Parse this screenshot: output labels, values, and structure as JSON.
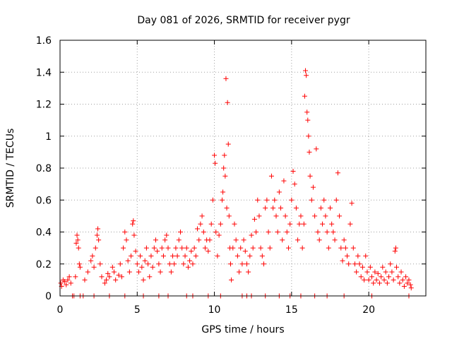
{
  "chart_data": {
    "type": "scatter",
    "title": "Day 081 of 2026, SRMTID for receiver pygr",
    "xlabel": "GPS time / hours",
    "ylabel": "SRMTID / TECUs",
    "xlim": [
      0,
      23.7
    ],
    "ylim": [
      0,
      1.6
    ],
    "x_ticks": [
      0,
      5,
      10,
      15,
      20
    ],
    "x_tick_labels": [
      "0",
      "5",
      "10",
      "15",
      "20"
    ],
    "y_ticks": [
      0,
      0.2,
      0.4,
      0.6,
      0.8,
      1.0,
      1.2,
      1.4,
      1.6
    ],
    "y_tick_labels": [
      "0",
      "0.2",
      "0.4",
      "0.6",
      "0.8",
      "1",
      "1.2",
      "1.4",
      "1.6"
    ],
    "grid": true,
    "marker": "+",
    "series": [
      {
        "name": "SRMTID",
        "color": "#ff0000",
        "points": [
          [
            0.05,
            0.08
          ],
          [
            0.1,
            0.06
          ],
          [
            0.2,
            0.1
          ],
          [
            0.3,
            0.09
          ],
          [
            0.4,
            0.07
          ],
          [
            0.5,
            0.1
          ],
          [
            0.6,
            0.12
          ],
          [
            0.7,
            0.08
          ],
          [
            0.9,
            0.0
          ],
          [
            1.0,
            0.12
          ],
          [
            1.05,
            0.33
          ],
          [
            1.1,
            0.38
          ],
          [
            1.15,
            0.35
          ],
          [
            1.2,
            0.3
          ],
          [
            1.25,
            0.2
          ],
          [
            1.3,
            0.18
          ],
          [
            1.5,
            0.0
          ],
          [
            1.6,
            0.1
          ],
          [
            1.8,
            0.15
          ],
          [
            2.0,
            0.22
          ],
          [
            2.1,
            0.25
          ],
          [
            2.2,
            0.18
          ],
          [
            2.3,
            0.3
          ],
          [
            2.4,
            0.38
          ],
          [
            2.45,
            0.42
          ],
          [
            2.5,
            0.35
          ],
          [
            2.6,
            0.2
          ],
          [
            2.7,
            0.12
          ],
          [
            2.9,
            0.08
          ],
          [
            3.0,
            0.1
          ],
          [
            3.1,
            0.14
          ],
          [
            3.2,
            0.12
          ],
          [
            3.4,
            0.18
          ],
          [
            3.5,
            0.15
          ],
          [
            3.6,
            0.1
          ],
          [
            3.8,
            0.13
          ],
          [
            3.9,
            0.2
          ],
          [
            4.0,
            0.12
          ],
          [
            4.1,
            0.3
          ],
          [
            4.2,
            0.4
          ],
          [
            4.3,
            0.35
          ],
          [
            4.4,
            0.22
          ],
          [
            4.5,
            0.15
          ],
          [
            4.6,
            0.25
          ],
          [
            4.7,
            0.45
          ],
          [
            4.75,
            0.47
          ],
          [
            4.8,
            0.38
          ],
          [
            4.9,
            0.28
          ],
          [
            5.0,
            0.2
          ],
          [
            5.1,
            0.15
          ],
          [
            5.2,
            0.25
          ],
          [
            5.3,
            0.18
          ],
          [
            5.4,
            0.1
          ],
          [
            5.5,
            0.22
          ],
          [
            5.6,
            0.3
          ],
          [
            5.7,
            0.2
          ],
          [
            5.8,
            0.12
          ],
          [
            5.9,
            0.25
          ],
          [
            6.0,
            0.18
          ],
          [
            6.1,
            0.3
          ],
          [
            6.2,
            0.35
          ],
          [
            6.3,
            0.28
          ],
          [
            6.4,
            0.2
          ],
          [
            6.5,
            0.15
          ],
          [
            6.6,
            0.3
          ],
          [
            6.7,
            0.25
          ],
          [
            6.8,
            0.35
          ],
          [
            6.9,
            0.38
          ],
          [
            7.0,
            0.3
          ],
          [
            7.1,
            0.2
          ],
          [
            7.2,
            0.15
          ],
          [
            7.3,
            0.25
          ],
          [
            7.4,
            0.2
          ],
          [
            7.5,
            0.3
          ],
          [
            7.6,
            0.25
          ],
          [
            7.7,
            0.35
          ],
          [
            7.8,
            0.4
          ],
          [
            7.9,
            0.3
          ],
          [
            8.0,
            0.2
          ],
          [
            8.1,
            0.25
          ],
          [
            8.2,
            0.3
          ],
          [
            8.3,
            0.18
          ],
          [
            8.4,
            0.22
          ],
          [
            8.5,
            0.28
          ],
          [
            8.6,
            0.2
          ],
          [
            8.7,
            0.3
          ],
          [
            8.8,
            0.25
          ],
          [
            8.9,
            0.42
          ],
          [
            9.0,
            0.35
          ],
          [
            9.1,
            0.45
          ],
          [
            9.2,
            0.5
          ],
          [
            9.3,
            0.4
          ],
          [
            9.4,
            0.3
          ],
          [
            9.5,
            0.35
          ],
          [
            9.6,
            0.28
          ],
          [
            9.7,
            0.35
          ],
          [
            9.8,
            0.45
          ],
          [
            9.9,
            0.6
          ],
          [
            10.0,
            0.88
          ],
          [
            10.05,
            0.83
          ],
          [
            10.1,
            0.4
          ],
          [
            10.2,
            0.25
          ],
          [
            10.3,
            0.38
          ],
          [
            10.4,
            0.45
          ],
          [
            10.5,
            0.6
          ],
          [
            10.55,
            0.65
          ],
          [
            10.6,
            0.8
          ],
          [
            10.65,
            0.88
          ],
          [
            10.7,
            0.75
          ],
          [
            10.75,
            1.36
          ],
          [
            10.8,
            0.55
          ],
          [
            10.85,
            1.21
          ],
          [
            10.9,
            0.95
          ],
          [
            10.95,
            0.5
          ],
          [
            11.0,
            0.3
          ],
          [
            11.05,
            0.2
          ],
          [
            11.1,
            0.1
          ],
          [
            11.2,
            0.3
          ],
          [
            11.3,
            0.45
          ],
          [
            11.4,
            0.35
          ],
          [
            11.5,
            0.25
          ],
          [
            11.6,
            0.15
          ],
          [
            11.7,
            0.3
          ],
          [
            11.8,
            0.2
          ],
          [
            11.9,
            0.35
          ],
          [
            12.0,
            0.28
          ],
          [
            12.1,
            0.2
          ],
          [
            12.2,
            0.15
          ],
          [
            12.3,
            0.25
          ],
          [
            12.4,
            0.38
          ],
          [
            12.5,
            0.3
          ],
          [
            12.6,
            0.48
          ],
          [
            12.7,
            0.4
          ],
          [
            12.8,
            0.6
          ],
          [
            12.9,
            0.5
          ],
          [
            13.0,
            0.3
          ],
          [
            13.1,
            0.25
          ],
          [
            13.2,
            0.2
          ],
          [
            13.3,
            0.55
          ],
          [
            13.4,
            0.6
          ],
          [
            13.5,
            0.4
          ],
          [
            13.6,
            0.3
          ],
          [
            13.7,
            0.75
          ],
          [
            13.8,
            0.55
          ],
          [
            13.9,
            0.6
          ],
          [
            14.0,
            0.5
          ],
          [
            14.1,
            0.4
          ],
          [
            14.2,
            0.65
          ],
          [
            14.3,
            0.55
          ],
          [
            14.4,
            0.35
          ],
          [
            14.5,
            0.72
          ],
          [
            14.6,
            0.5
          ],
          [
            14.7,
            0.4
          ],
          [
            14.8,
            0.3
          ],
          [
            14.9,
            0.45
          ],
          [
            15.0,
            0.6
          ],
          [
            15.1,
            0.78
          ],
          [
            15.2,
            0.7
          ],
          [
            15.3,
            0.55
          ],
          [
            15.4,
            0.35
          ],
          [
            15.5,
            0.45
          ],
          [
            15.6,
            0.5
          ],
          [
            15.7,
            0.3
          ],
          [
            15.8,
            0.45
          ],
          [
            15.85,
            1.25
          ],
          [
            15.9,
            1.41
          ],
          [
            15.95,
            1.38
          ],
          [
            16.0,
            1.15
          ],
          [
            16.05,
            1.1
          ],
          [
            16.1,
            1.0
          ],
          [
            16.15,
            0.9
          ],
          [
            16.2,
            0.75
          ],
          [
            16.3,
            0.6
          ],
          [
            16.4,
            0.68
          ],
          [
            16.5,
            0.5
          ],
          [
            16.6,
            0.92
          ],
          [
            16.7,
            0.4
          ],
          [
            16.8,
            0.35
          ],
          [
            16.9,
            0.55
          ],
          [
            17.0,
            0.45
          ],
          [
            17.1,
            0.6
          ],
          [
            17.2,
            0.5
          ],
          [
            17.3,
            0.4
          ],
          [
            17.4,
            0.3
          ],
          [
            17.5,
            0.55
          ],
          [
            17.6,
            0.45
          ],
          [
            17.7,
            0.4
          ],
          [
            17.8,
            0.35
          ],
          [
            17.9,
            0.6
          ],
          [
            18.0,
            0.77
          ],
          [
            18.1,
            0.5
          ],
          [
            18.2,
            0.3
          ],
          [
            18.3,
            0.22
          ],
          [
            18.4,
            0.35
          ],
          [
            18.5,
            0.3
          ],
          [
            18.6,
            0.25
          ],
          [
            18.7,
            0.2
          ],
          [
            18.8,
            0.45
          ],
          [
            18.9,
            0.58
          ],
          [
            19.0,
            0.3
          ],
          [
            19.1,
            0.2
          ],
          [
            19.2,
            0.15
          ],
          [
            19.3,
            0.25
          ],
          [
            19.4,
            0.2
          ],
          [
            19.5,
            0.12
          ],
          [
            19.6,
            0.18
          ],
          [
            19.7,
            0.1
          ],
          [
            19.8,
            0.25
          ],
          [
            19.9,
            0.15
          ],
          [
            20.0,
            0.1
          ],
          [
            20.1,
            0.18
          ],
          [
            20.2,
            0.12
          ],
          [
            20.3,
            0.08
          ],
          [
            20.4,
            0.15
          ],
          [
            20.5,
            0.1
          ],
          [
            20.6,
            0.14
          ],
          [
            20.7,
            0.08
          ],
          [
            20.8,
            0.12
          ],
          [
            20.9,
            0.18
          ],
          [
            21.0,
            0.1
          ],
          [
            21.1,
            0.15
          ],
          [
            21.2,
            0.08
          ],
          [
            21.3,
            0.12
          ],
          [
            21.4,
            0.2
          ],
          [
            21.5,
            0.15
          ],
          [
            21.6,
            0.1
          ],
          [
            21.7,
            0.28
          ],
          [
            21.75,
            0.3
          ],
          [
            21.8,
            0.18
          ],
          [
            21.9,
            0.12
          ],
          [
            22.0,
            0.08
          ],
          [
            22.1,
            0.15
          ],
          [
            22.2,
            0.1
          ],
          [
            22.3,
            0.06
          ],
          [
            22.4,
            0.12
          ],
          [
            22.5,
            0.08
          ],
          [
            22.6,
            0.1
          ],
          [
            22.7,
            0.07
          ],
          [
            22.75,
            0.05
          ],
          [
            0.8,
            0.0
          ],
          [
            1.3,
            0.0
          ],
          [
            2.2,
            0.0
          ],
          [
            3.2,
            0.0
          ],
          [
            4.2,
            0.0
          ],
          [
            5.4,
            0.0
          ],
          [
            6.4,
            0.0
          ],
          [
            7.0,
            0.0
          ],
          [
            8.2,
            0.0
          ],
          [
            8.6,
            0.0
          ],
          [
            9.6,
            0.0
          ],
          [
            10.4,
            0.0
          ],
          [
            11.8,
            0.0
          ],
          [
            12.1,
            0.0
          ],
          [
            12.4,
            0.0
          ],
          [
            13.3,
            0.0
          ],
          [
            14.2,
            0.0
          ],
          [
            14.9,
            0.0
          ],
          [
            15.6,
            0.0
          ],
          [
            16.5,
            0.0
          ],
          [
            17.3,
            0.0
          ],
          [
            18.4,
            0.0
          ],
          [
            20.2,
            0.0
          ],
          [
            22.6,
            0.0
          ]
        ]
      }
    ]
  }
}
